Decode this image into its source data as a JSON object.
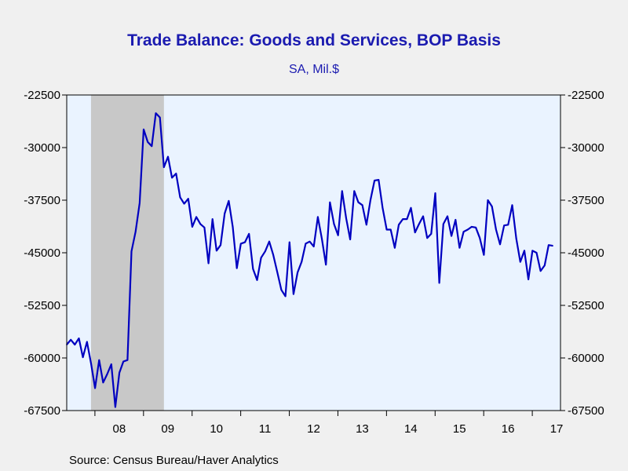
{
  "chart_data": {
    "type": "line",
    "title": "Trade Balance: Goods and Services, BOP Basis",
    "subtitle": "SA, Mil.$",
    "source": "Source:  Census Bureau/Haver Analytics",
    "ylim": [
      -67500,
      -22500
    ],
    "yticks": [
      -22500,
      -30000,
      -37500,
      -45000,
      -52500,
      -60000,
      -67500
    ],
    "ytick_labels": [
      "-22500",
      "-30000",
      "-37500",
      "-45000",
      "-52500",
      "-60000",
      "-67500"
    ],
    "xlim": [
      2007.42,
      2017.58
    ],
    "xticks": [
      {
        "label": "08",
        "pos": 2008.5
      },
      {
        "label": "09",
        "pos": 2009.5
      },
      {
        "label": "10",
        "pos": 2010.5
      },
      {
        "label": "11",
        "pos": 2011.5
      },
      {
        "label": "12",
        "pos": 2012.5
      },
      {
        "label": "13",
        "pos": 2013.5
      },
      {
        "label": "14",
        "pos": 2014.5
      },
      {
        "label": "15",
        "pos": 2015.5
      },
      {
        "label": "16",
        "pos": 2016.5
      },
      {
        "label": "17",
        "pos": 2017.5
      }
    ],
    "recession": {
      "start": 2007.92,
      "end": 2009.42
    },
    "grid": false,
    "legend": "none",
    "series": [
      {
        "color": "#0000c0",
        "x_start": 2007.42,
        "step_months": 1,
        "values": [
          -58100,
          -57400,
          -58100,
          -57200,
          -59900,
          -57700,
          -60800,
          -64300,
          -60300,
          -63500,
          -62300,
          -60900,
          -67000,
          -62100,
          -60500,
          -60300,
          -44800,
          -42000,
          -37900,
          -27400,
          -29200,
          -29800,
          -25100,
          -25700,
          -32800,
          -31300,
          -34300,
          -33700,
          -37100,
          -38000,
          -37300,
          -41300,
          -39900,
          -40900,
          -41400,
          -46500,
          -40200,
          -44700,
          -43900,
          -39400,
          -37600,
          -41300,
          -47200,
          -43700,
          -43500,
          -42300,
          -47300,
          -48900,
          -45700,
          -44800,
          -43400,
          -45300,
          -47800,
          -50300,
          -51200,
          -43500,
          -50900,
          -47800,
          -46300,
          -43700,
          -43400,
          -44100,
          -39900,
          -43000,
          -46700,
          -37800,
          -40900,
          -42500,
          -36200,
          -40100,
          -43100,
          -36200,
          -37800,
          -38200,
          -41000,
          -37500,
          -34700,
          -34600,
          -38600,
          -41700,
          -41700,
          -44300,
          -41000,
          -40200,
          -40200,
          -38600,
          -42100,
          -40900,
          -39800,
          -42900,
          -42300,
          -36500,
          -49300,
          -40900,
          -39800,
          -42600,
          -40300,
          -44300,
          -42000,
          -41700,
          -41300,
          -41400,
          -42900,
          -45300,
          -37500,
          -38400,
          -41700,
          -43800,
          -41100,
          -41000,
          -38200,
          -43000,
          -46300,
          -44700,
          -48800,
          -44700,
          -45000,
          -47600,
          -46800,
          -43900,
          -44000
        ]
      }
    ]
  }
}
